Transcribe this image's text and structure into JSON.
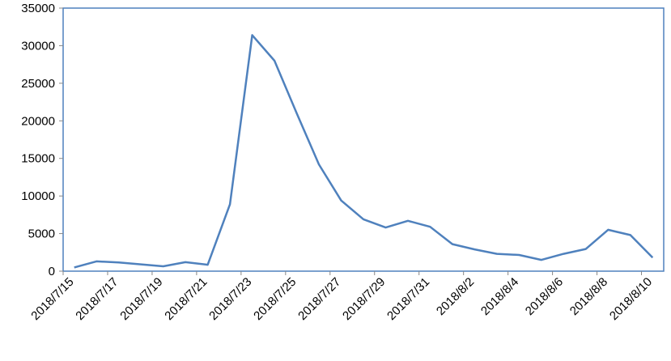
{
  "chart_data": {
    "type": "line",
    "categories": [
      "2018/7/15",
      null,
      "2018/7/17",
      null,
      "2018/7/19",
      null,
      "2018/7/21",
      null,
      "2018/7/23",
      null,
      "2018/7/25",
      null,
      "2018/7/27",
      null,
      "2018/7/29",
      null,
      "2018/7/31",
      null,
      "2018/8/2",
      null,
      "2018/8/4",
      null,
      "2018/8/6",
      null,
      "2018/8/8",
      null,
      "2018/8/10"
    ],
    "values": [
      500,
      1300,
      1150,
      900,
      650,
      1200,
      850,
      8900,
      31400,
      28000,
      21000,
      14200,
      9400,
      6900,
      5800,
      6700,
      5900,
      3600,
      2900,
      2300,
      2150,
      1500,
      2300,
      2950,
      5500,
      4800,
      1800
    ],
    "color": "#4f81bd",
    "ylim": [
      0,
      35000
    ],
    "yticks": [
      0,
      5000,
      10000,
      15000,
      20000,
      25000,
      30000,
      35000
    ],
    "grid": false
  }
}
